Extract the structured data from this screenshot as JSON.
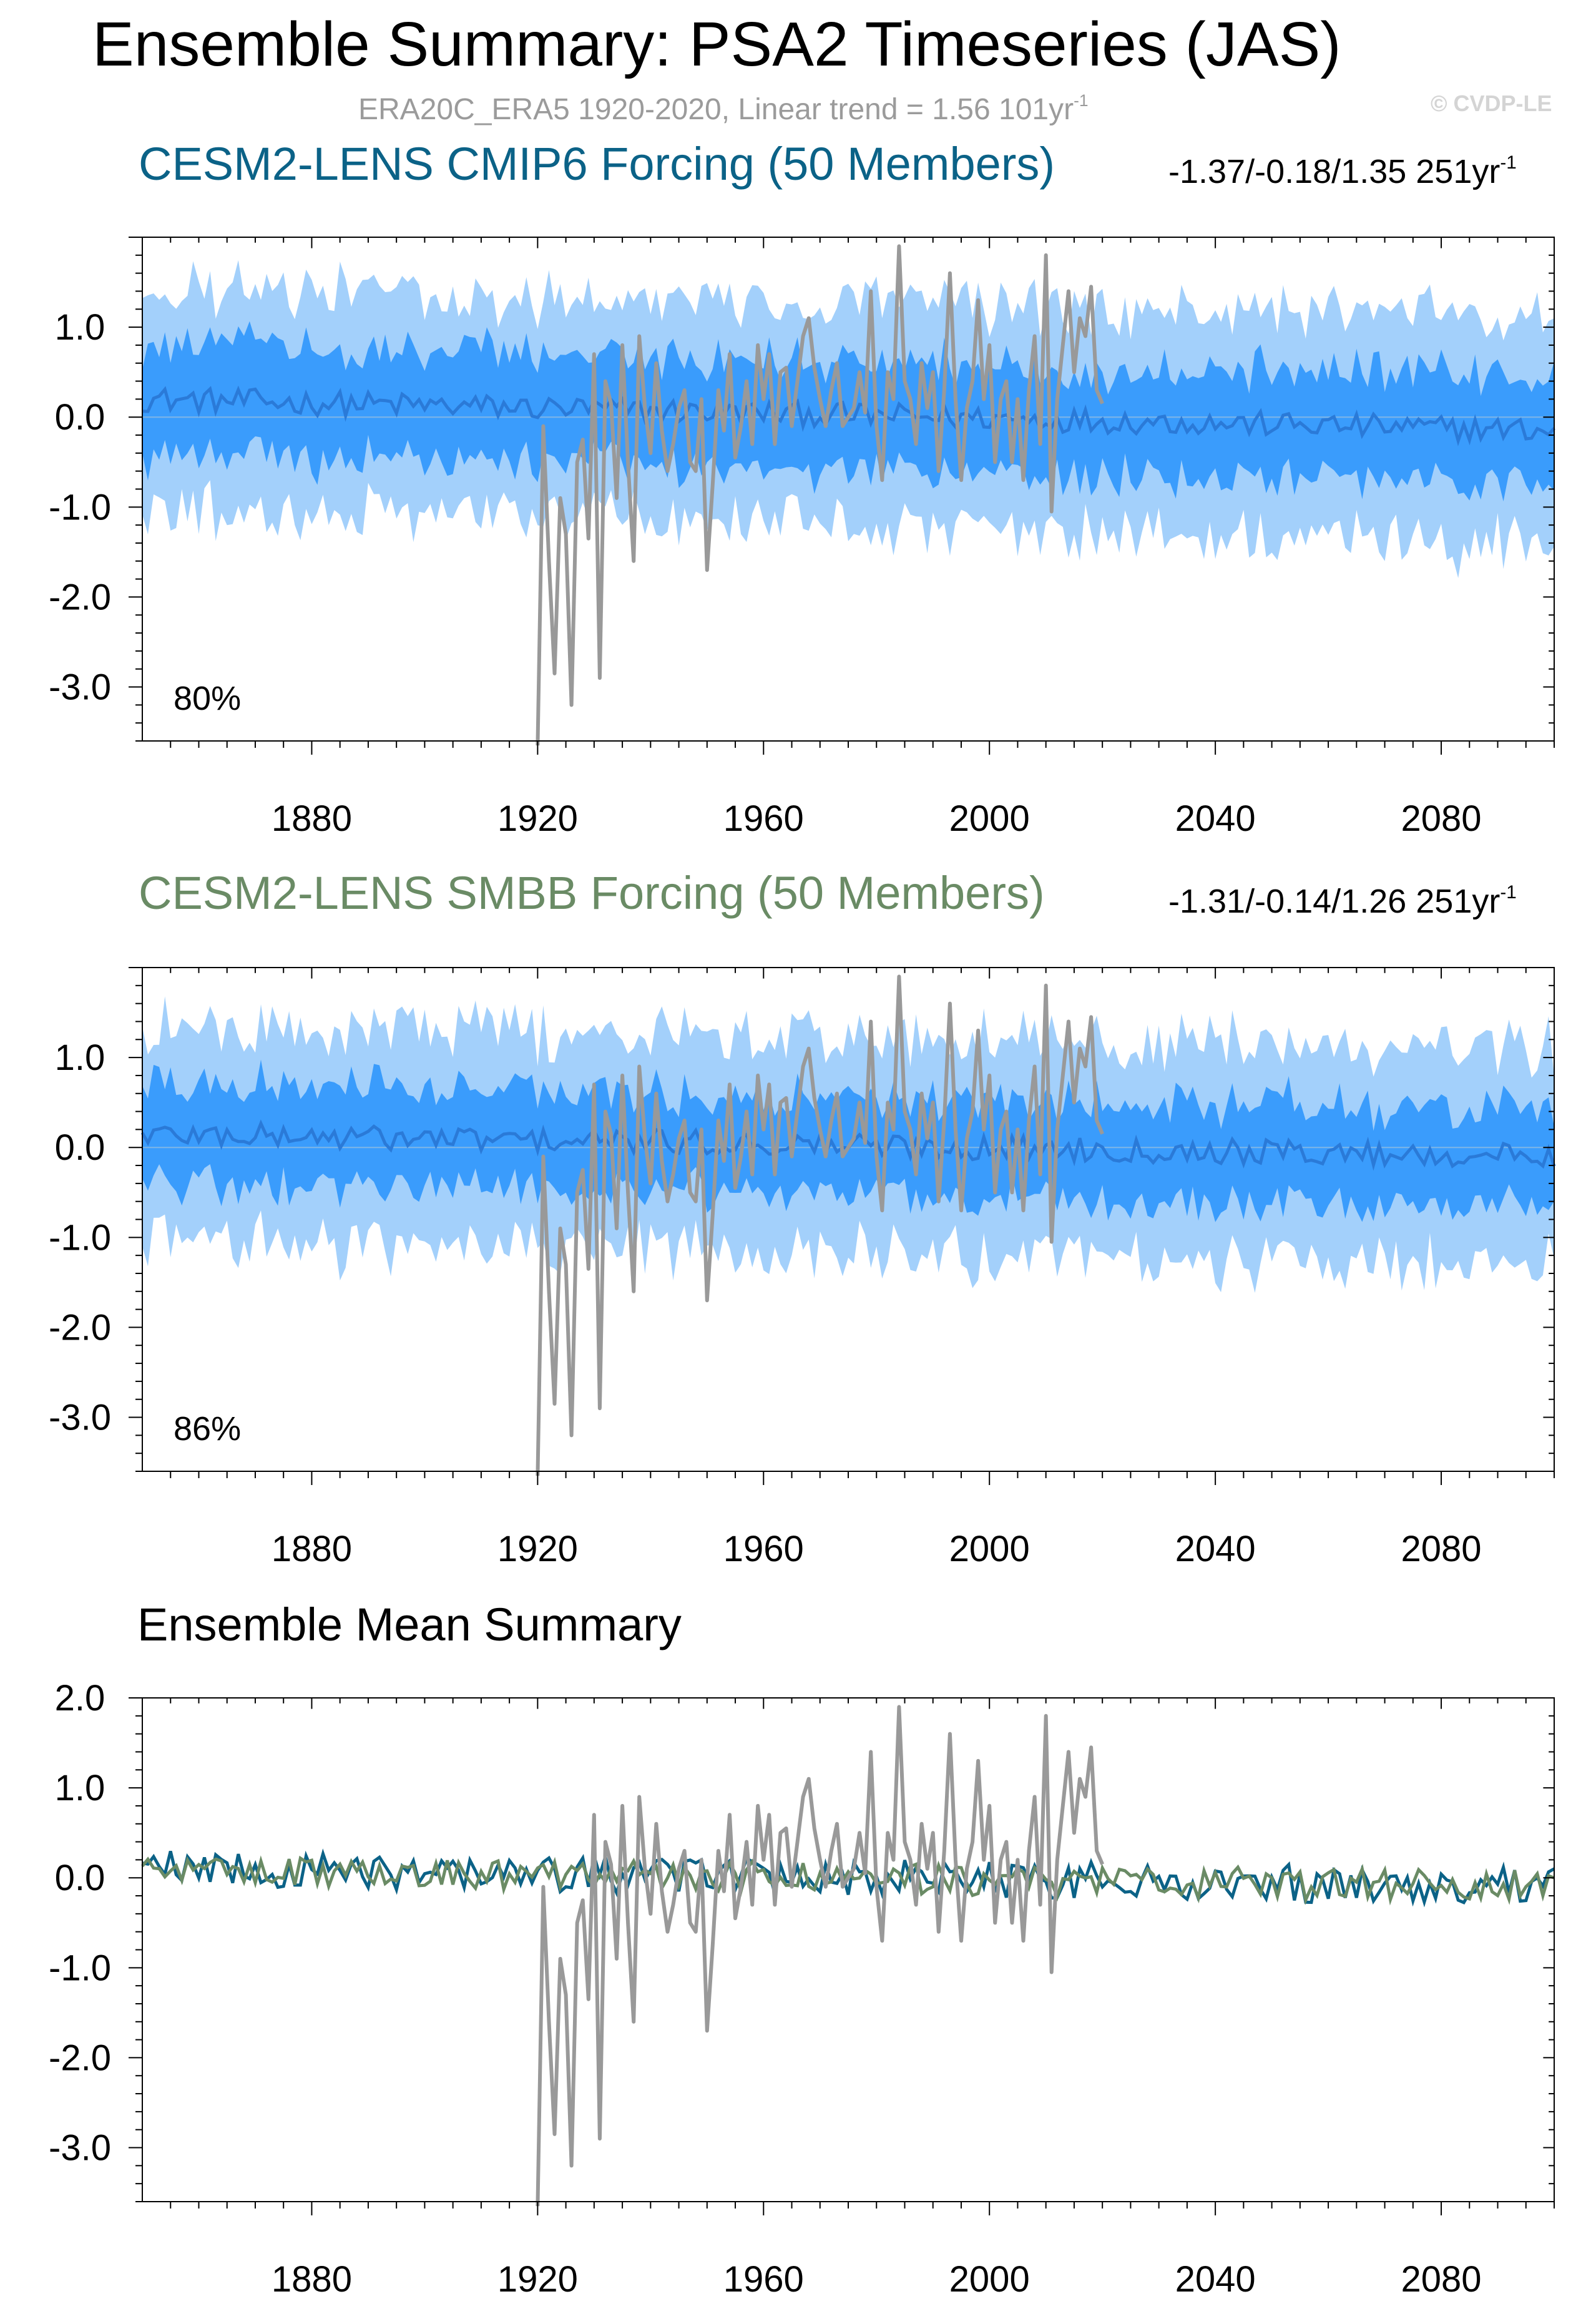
{
  "title": "Ensemble Summary: PSA2 Timeseries (JAS)",
  "subtitle_text": "ERA20C_ERA5 1920-2020, Linear trend = 1.56 101yr",
  "subtitle_sup": "-1",
  "watermark": "© CVDP-LE",
  "colors": {
    "outer_band": "#a3d0fb",
    "inner_band": "#3a9cfc",
    "ensemble_mean": "#2a7ad8",
    "observed": "#999999",
    "cmip6_mean": "#0b6287",
    "smbb_mean": "#6a8b65"
  },
  "chart_data": [
    {
      "id": "cmip6",
      "type": "area",
      "title": "CESM2-LENS CMIP6 Forcing (50 Members)",
      "trend_text": "-1.37/-0.18/1.35 251yr",
      "trend_sup": "-1",
      "percent_label": "80%",
      "xlim": [
        1850,
        2100
      ],
      "ylim": [
        -3.6,
        2.0
      ],
      "x_ticks": [
        "1880",
        "1920",
        "1960",
        "2000",
        "2040",
        "2080"
      ],
      "y_ticks": [
        "1.0",
        "0.0",
        "-1.0",
        "-2.0",
        "-3.0"
      ],
      "series": [
        {
          "role": "outer-band",
          "x_range": [
            1850,
            2100
          ],
          "lower_mean": -1.25,
          "upper_mean": 1.25
        },
        {
          "role": "inner-band",
          "x_range": [
            1850,
            2100
          ],
          "lower_mean": -0.6,
          "upper_mean": 0.6
        },
        {
          "role": "ensemble-mean",
          "x_range": [
            1850,
            2100
          ],
          "start": 0.2,
          "end": -0.15
        },
        {
          "role": "observed",
          "x": [
            1920,
            1921,
            1922,
            1923,
            1924,
            1925,
            1926,
            1927,
            1928,
            1929,
            1930,
            1931,
            1932,
            1933,
            1934,
            1935,
            1936,
            1937,
            1938,
            1939,
            1940,
            1941,
            1942,
            1943,
            1944,
            1945,
            1946,
            1947,
            1948,
            1949,
            1950,
            1951,
            1952,
            1953,
            1954,
            1955,
            1956,
            1957,
            1958,
            1959,
            1960,
            1961,
            1962,
            1963,
            1964,
            1965,
            1966,
            1967,
            1968,
            1969,
            1970,
            1971,
            1972,
            1973,
            1974,
            1975,
            1976,
            1977,
            1978,
            1979,
            1980,
            1981,
            1982,
            1983,
            1984,
            1985,
            1986,
            1987,
            1988,
            1989,
            1990,
            1991,
            1992,
            1993,
            1994,
            1995,
            1996,
            1997,
            1998,
            1999,
            2000,
            2001,
            2002,
            2003,
            2004,
            2005,
            2006,
            2007,
            2008,
            2009,
            2010,
            2011,
            2012,
            2013,
            2014,
            2015,
            2016,
            2017,
            2018,
            2019,
            2020
          ],
          "values": [
            -3.65,
            -0.1,
            -1.6,
            -2.85,
            -0.9,
            -1.3,
            -3.2,
            -0.5,
            -0.25,
            -1.35,
            0.7,
            -2.9,
            0.4,
            0.15,
            -0.9,
            0.8,
            -0.5,
            -1.6,
            0.9,
            0.1,
            -0.4,
            0.6,
            -0.15,
            -0.6,
            -0.3,
            0.1,
            0.3,
            -0.5,
            -0.6,
            0.2,
            -1.7,
            -0.75,
            0.3,
            -0.15,
            0.7,
            -0.45,
            -0.1,
            0.4,
            -0.3,
            0.8,
            0.2,
            0.7,
            -0.3,
            0.5,
            0.55,
            -0.1,
            0.4,
            0.9,
            1.1,
            0.55,
            0.2,
            -0.1,
            0.3,
            0.6,
            -0.1,
            0.0,
            0.1,
            0.5,
            0.05,
            1.4,
            -0.1,
            -0.7,
            0.5,
            0.2,
            1.9,
            0.4,
            0.2,
            -0.3,
            0.6,
            0.1,
            0.5,
            -0.6,
            0.3,
            1.6,
            0.2,
            -0.7,
            0.1,
            0.4,
            1.3,
            0.2,
            0.8,
            -0.5,
            0.2,
            0.4,
            -0.5,
            0.2,
            -0.7,
            0.3,
            0.9,
            -0.3,
            1.8,
            -1.05,
            0.2,
            0.8,
            1.4,
            0.5,
            1.1,
            0.9,
            1.45,
            0.3,
            0.15
          ]
        }
      ]
    },
    {
      "id": "smbb",
      "type": "area",
      "title": "CESM2-LENS SMBB Forcing (50 Members)",
      "trend_text": "-1.31/-0.14/1.26 251yr",
      "trend_sup": "-1",
      "percent_label": "86%",
      "xlim": [
        1850,
        2100
      ],
      "ylim": [
        -3.6,
        2.0
      ],
      "x_ticks": [
        "1880",
        "1920",
        "1960",
        "2000",
        "2040",
        "2080"
      ],
      "y_ticks": [
        "1.0",
        "0.0",
        "-1.0",
        "-2.0",
        "-3.0"
      ],
      "series": [
        {
          "role": "outer-band",
          "x_range": [
            1850,
            2100
          ],
          "lower_mean": -1.2,
          "upper_mean": 1.2
        },
        {
          "role": "inner-band",
          "x_range": [
            1850,
            2100
          ],
          "lower_mean": -0.55,
          "upper_mean": 0.55
        },
        {
          "role": "ensemble-mean",
          "x_range": [
            1850,
            2100
          ],
          "start": 0.15,
          "end": -0.1
        },
        {
          "role": "observed",
          "ref": "cmip6.observed"
        }
      ]
    },
    {
      "id": "ensemble-mean-summary",
      "type": "line",
      "title": "Ensemble Mean Summary",
      "xlim": [
        1850,
        2100
      ],
      "ylim": [
        -3.6,
        2.0
      ],
      "x_ticks": [
        "1880",
        "1920",
        "1960",
        "2000",
        "2040",
        "2080"
      ],
      "y_ticks": [
        "2.0",
        "1.0",
        "0.0",
        "-1.0",
        "-2.0",
        "-3.0"
      ],
      "series": [
        {
          "role": "cmip6-mean",
          "x_range": [
            1850,
            2100
          ],
          "amplitude": 0.15
        },
        {
          "role": "smbb-mean",
          "x_range": [
            1850,
            2100
          ],
          "amplitude": 0.13
        },
        {
          "role": "observed",
          "ref": "cmip6.observed"
        }
      ]
    }
  ]
}
